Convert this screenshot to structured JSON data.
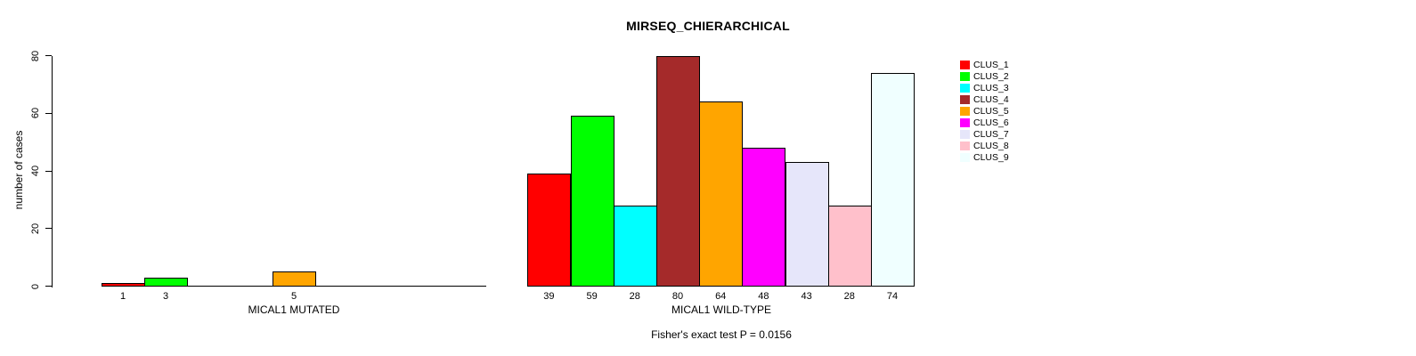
{
  "chart_data": {
    "type": "bar",
    "title": "MIRSEQ_CHIERARCHICAL",
    "ylabel": "number of cases",
    "ylim": [
      0,
      80
    ],
    "yticks": [
      0,
      20,
      40,
      60,
      80
    ],
    "grid": false,
    "legend_position": "right",
    "categories": [
      "CLUS_1",
      "CLUS_2",
      "CLUS_3",
      "CLUS_4",
      "CLUS_5",
      "CLUS_6",
      "CLUS_7",
      "CLUS_8",
      "CLUS_9"
    ],
    "colors": [
      "#FF0000",
      "#00FF00",
      "#00FFFF",
      "#A52A2A",
      "#FFA500",
      "#FF00FF",
      "#E6E6FA",
      "#FFC0CB",
      "#F0FFFF"
    ],
    "panels": [
      {
        "xlabel": "MICAL1 MUTATED",
        "values": [
          1,
          3,
          0,
          0,
          5,
          0,
          0,
          0,
          0
        ],
        "bar_labels": [
          "1",
          "3",
          "",
          "",
          "5",
          "",
          "",
          "",
          ""
        ]
      },
      {
        "xlabel": "MICAL1 WILD-TYPE",
        "values": [
          39,
          59,
          28,
          80,
          64,
          48,
          43,
          28,
          74
        ],
        "bar_labels": [
          "39",
          "59",
          "28",
          "80",
          "64",
          "48",
          "43",
          "28",
          "74"
        ]
      }
    ],
    "annotation": "Fisher's exact test P = 0.0156",
    "axis_color": "#000000",
    "background": "#FFFFFF"
  }
}
